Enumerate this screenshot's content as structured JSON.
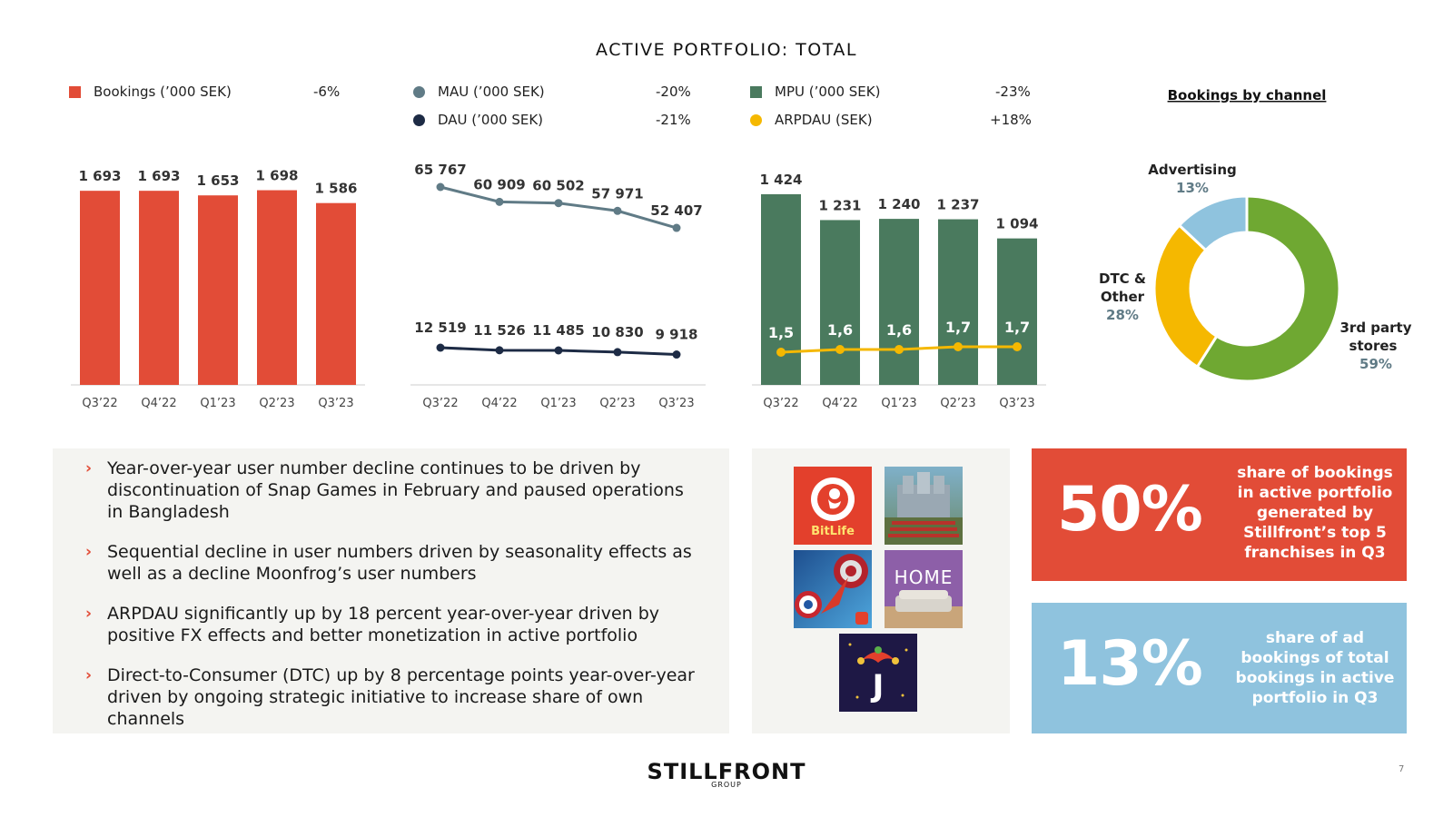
{
  "page": {
    "title": "ACTIVE PORTFOLIO: TOTAL",
    "number": "7"
  },
  "colors": {
    "red": "#e24c37",
    "slate": "#607b86",
    "navy": "#1d2b45",
    "green": "#4a7a5e",
    "yellow": "#f5b800",
    "lightgreen": "#6fa832",
    "lightblue": "#8fc3de"
  },
  "legends": {
    "bookings": {
      "label": "Bookings (’000 SEK)",
      "change": "-6%"
    },
    "mau": {
      "label": "MAU (’000 SEK)",
      "change": "-20%"
    },
    "dau": {
      "label": "DAU (’000 SEK)",
      "change": "-21%"
    },
    "mpu": {
      "label": "MPU (’000 SEK)",
      "change": "-23%"
    },
    "arpdau": {
      "label": "ARPDAU (SEK)",
      "change": "+18%"
    }
  },
  "chart_data": [
    {
      "type": "bar",
      "categories": [
        "Q3’22",
        "Q4’22",
        "Q1’23",
        "Q2’23",
        "Q3’23"
      ],
      "series": [
        {
          "name": "Bookings (’000 SEK)",
          "values": [
            1693,
            1693,
            1653,
            1698,
            1586
          ],
          "labels": [
            "1 693",
            "1 693",
            "1 653",
            "1 698",
            "1 586"
          ]
        }
      ]
    },
    {
      "type": "line",
      "categories": [
        "Q3’22",
        "Q4’22",
        "Q1’23",
        "Q2’23",
        "Q3’23"
      ],
      "series": [
        {
          "name": "MAU (’000 SEK)",
          "values": [
            65767,
            60909,
            60502,
            57971,
            52407
          ],
          "labels": [
            "65 767",
            "60 909",
            "60 502",
            "57 971",
            "52 407"
          ]
        },
        {
          "name": "DAU (’000 SEK)",
          "values": [
            12519,
            11526,
            11485,
            10830,
            9918
          ],
          "labels": [
            "12 519",
            "11 526",
            "11 485",
            "10 830",
            "9 918"
          ]
        }
      ]
    },
    {
      "type": "bar",
      "categories": [
        "Q3’22",
        "Q4’22",
        "Q1’23",
        "Q2’23",
        "Q3’23"
      ],
      "series": [
        {
          "name": "MPU (’000 SEK)",
          "values": [
            1424,
            1231,
            1240,
            1237,
            1094
          ],
          "labels": [
            "1 424",
            "1 231",
            "1 240",
            "1 237",
            "1 094"
          ]
        },
        {
          "name": "ARPDAU (SEK)",
          "type": "line",
          "values": [
            1.5,
            1.6,
            1.6,
            1.7,
            1.7
          ],
          "labels": [
            "1,5",
            "1,6",
            "1,6",
            "1,7",
            "1,7"
          ]
        }
      ]
    },
    {
      "type": "pie",
      "title": "Bookings by channel",
      "slices": [
        {
          "label": "3rd party stores",
          "value": 59,
          "pct": "59%"
        },
        {
          "label": "DTC & Other",
          "value": 28,
          "pct": "28%"
        },
        {
          "label": "Advertising",
          "value": 13,
          "pct": "13%"
        }
      ]
    }
  ],
  "bullets": [
    "Year-over-year user number decline continues to be driven by discontinuation of Snap Games in February and paused operations in Bangladesh",
    "Sequential decline in user numbers driven by seasonality effects as well as a decline Moonfrog’s user numbers",
    "ARPDAU significantly up by 18 percent year-over-year driven by positive FX effects and better monetization in active portfolio",
    "Direct-to-Consumer (DTC) up by 8 percentage points year-over-year driven by ongoing strategic initiative to increase share of own channels"
  ],
  "games": {
    "bitlife_label": "BitLife",
    "home_label": "HOME",
    "jackpot_label": "J"
  },
  "stats": [
    {
      "big": "50%",
      "text": "share of bookings in active portfolio generated by Stillfront’s top 5 franchises in Q3"
    },
    {
      "big": "13%",
      "text": "share of ad bookings of total bookings in active portfolio in Q3"
    }
  ],
  "logo": {
    "name": "STILLFRONT",
    "sub": "GROUP"
  }
}
